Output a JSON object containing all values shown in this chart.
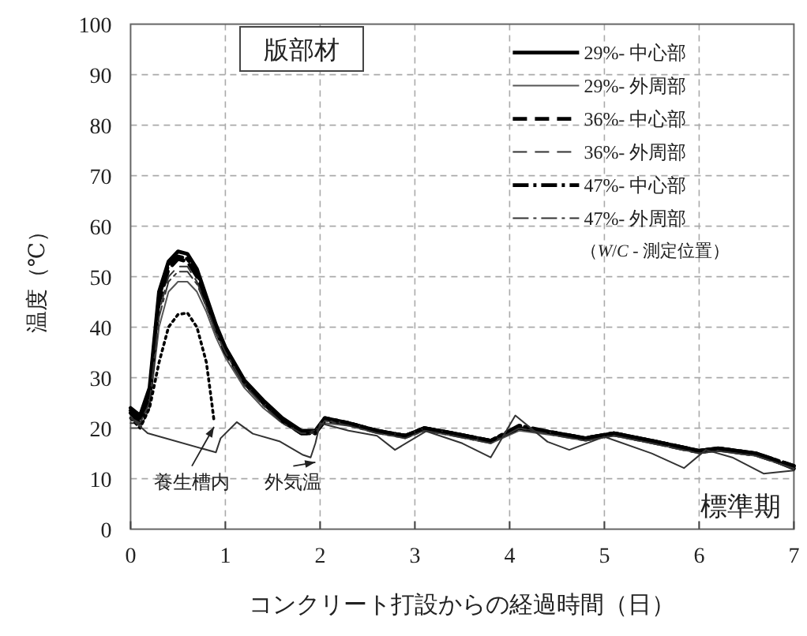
{
  "chart_data": {
    "type": "line",
    "title": "版部材",
    "xlabel": "コンクリート打設からの経過時間（日）",
    "ylabel": "温度（℃）",
    "legend_title": "（*W*/*C* - 測定位置）",
    "x": [
      0,
      0.1,
      0.2,
      0.3,
      0.4,
      0.5,
      0.6,
      0.7,
      0.8,
      0.9,
      1.0,
      1.2,
      1.4,
      1.6,
      1.8,
      1.95,
      2.05,
      2.3,
      2.6,
      2.9,
      3.1,
      3.4,
      3.8,
      4.1,
      4.5,
      4.8,
      5.1,
      5.5,
      6.0,
      6.2,
      6.6,
      7.0
    ],
    "series": [
      {
        "name": "29%- 中心部",
        "color": "#000000",
        "line_style": "solid",
        "values": [
          24,
          22.5,
          28,
          47,
          53,
          55,
          54.5,
          51.5,
          46,
          40.5,
          36,
          29.5,
          25.5,
          22,
          19.5,
          19.5,
          22,
          21,
          19.5,
          18.5,
          20,
          19,
          17.5,
          20,
          19,
          18,
          19,
          17.5,
          15.5,
          16,
          15,
          12
        ]
      },
      {
        "name": "29%- 外周部",
        "color": "#555555",
        "line_style": "solid",
        "values": [
          20,
          20,
          24,
          40,
          47,
          49,
          49,
          47,
          43,
          38,
          34,
          28,
          24,
          21,
          19,
          19,
          21,
          20.5,
          19,
          18,
          19.5,
          18.5,
          17,
          19.5,
          18.5,
          17.5,
          18.5,
          17,
          15,
          15.5,
          14.5,
          12
        ]
      },
      {
        "name": "36%- 中心部",
        "color": "#000000",
        "line_style": "dashed",
        "values": [
          23,
          21,
          26,
          45,
          51.5,
          53.5,
          53,
          50,
          45,
          39.5,
          35,
          29,
          25,
          21.5,
          19,
          19,
          21.5,
          21,
          19.5,
          18.5,
          20,
          19,
          17.5,
          20,
          19,
          18,
          19,
          17.5,
          15.5,
          16,
          15,
          12.5
        ]
      },
      {
        "name": "36%- 外周部",
        "color": "#333333",
        "line_style": "dashed",
        "values": [
          22,
          21,
          25,
          43,
          50,
          52,
          52,
          49,
          44,
          39,
          35,
          29,
          25,
          21.5,
          19,
          19.5,
          21.5,
          21,
          19.5,
          18.5,
          20,
          19,
          17.5,
          20,
          19,
          17.5,
          18.5,
          17,
          15,
          15.5,
          14.5,
          12
        ]
      },
      {
        "name": "47%- 中心部",
        "color": "#000000",
        "line_style": "dashdot",
        "values": [
          23.5,
          22,
          27,
          46,
          52.5,
          54,
          53.5,
          51,
          45.5,
          40,
          35.5,
          29,
          25,
          21.5,
          19,
          19,
          22,
          21,
          19.5,
          18.5,
          20,
          19,
          17.5,
          20.5,
          19,
          18,
          19,
          17.5,
          15.5,
          16,
          15,
          12.5
        ]
      },
      {
        "name": "47%- 外周部",
        "color": "#333333",
        "line_style": "dashdot",
        "values": [
          21,
          21,
          25,
          42,
          49,
          51,
          51,
          48.5,
          44,
          39,
          35,
          28.5,
          24.5,
          21,
          19,
          19,
          21.5,
          20.5,
          19,
          18,
          19.5,
          18.5,
          17,
          20,
          18.5,
          17.5,
          18.5,
          17,
          15,
          15.5,
          14.5,
          12
        ]
      },
      {
        "color": "#000000",
        "line_style": "dotted",
        "x": [
          0,
          0.1,
          0.2,
          0.3,
          0.4,
          0.5,
          0.6,
          0.7,
          0.8,
          0.85,
          0.88
        ],
        "values": [
          22,
          20,
          24,
          33,
          40,
          42.5,
          42.8,
          40,
          33,
          26,
          21.5
        ]
      },
      {
        "color": "#333333",
        "line_style": "solid",
        "x": [
          0,
          0.18,
          0.9,
          0.95,
          1.12,
          1.29,
          1.57,
          1.82,
          1.9,
          1.95,
          2.0,
          2.3,
          2.6,
          2.79,
          3.12,
          3.5,
          3.8,
          4.06,
          4.4,
          4.63,
          5.0,
          5.5,
          5.84,
          6.07,
          6.35,
          6.68,
          7.0
        ],
        "values": [
          22,
          19,
          15.2,
          18,
          21.2,
          18.9,
          17.4,
          14.7,
          14.2,
          17,
          21,
          19.5,
          18.5,
          15.7,
          19.4,
          17,
          14.2,
          22.5,
          17.3,
          15.7,
          18.3,
          15,
          12.1,
          15.7,
          14.2,
          11,
          11.6
        ]
      }
    ],
    "annotations": [
      {
        "text": "養生槽内",
        "x": 0.88,
        "y": 21.5
      },
      {
        "text": "外気温",
        "x": 1.95,
        "y": 14.5
      },
      "標準期"
    ],
    "xlim": [
      0,
      7
    ],
    "ylim": [
      0,
      100
    ],
    "xticks": [
      0,
      1,
      2,
      3,
      4,
      5,
      6,
      7
    ],
    "yticks": [
      0,
      10,
      20,
      30,
      40,
      50,
      60,
      70,
      80,
      90,
      100
    ],
    "grid": true,
    "legend": "top right"
  }
}
